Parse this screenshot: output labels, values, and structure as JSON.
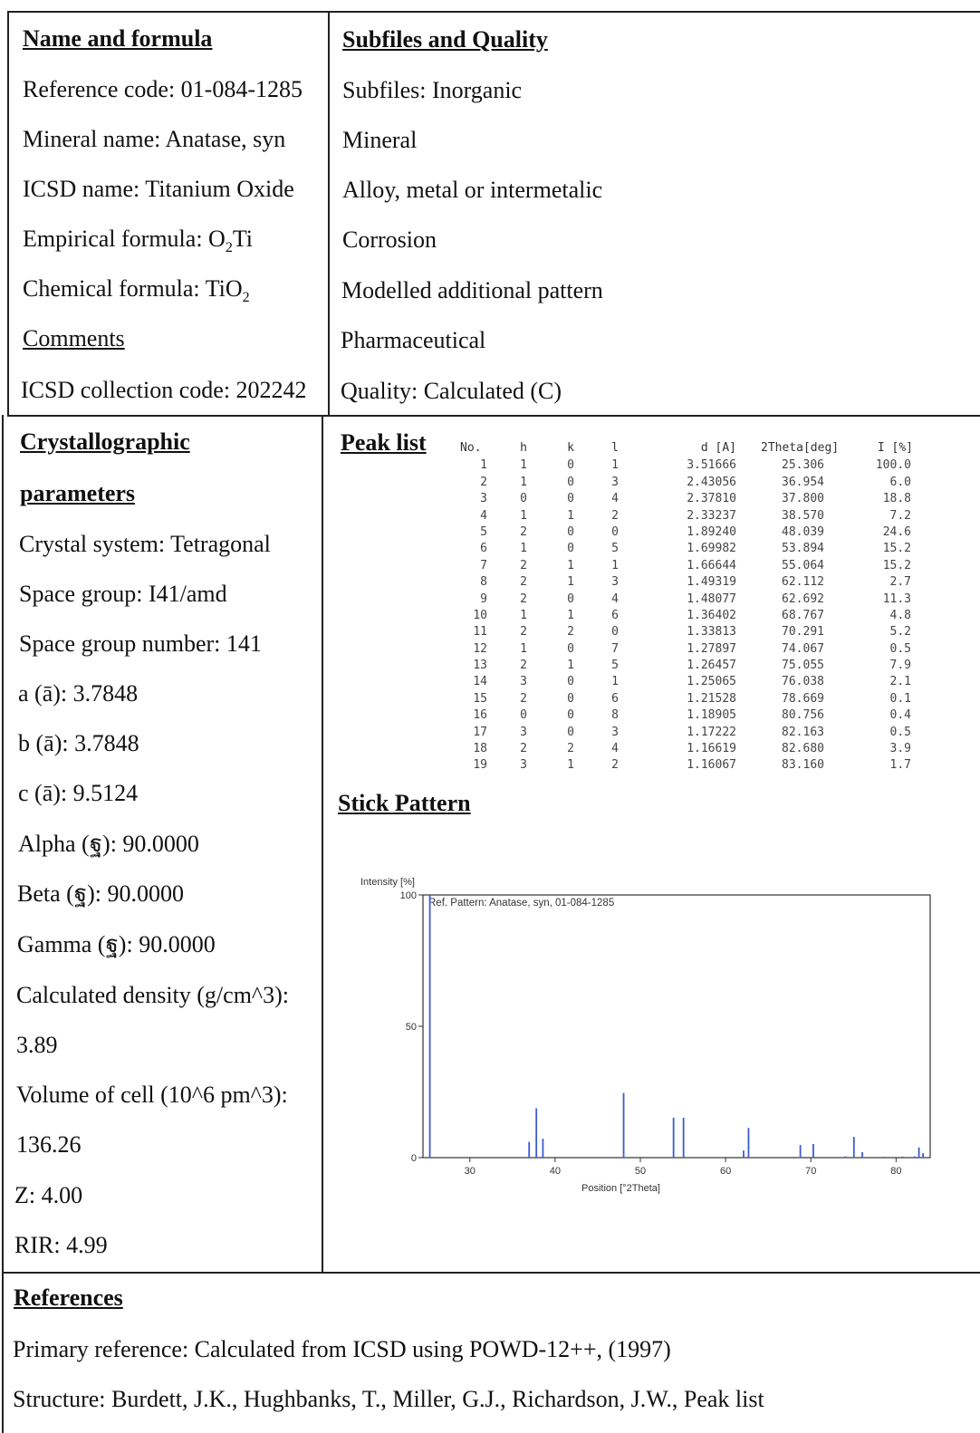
{
  "left_top": {
    "heading": "Name and formula",
    "reference_code": "Reference code: 01-084-1285",
    "mineral_name": "Mineral name: Anatase, syn",
    "icsd_name": "ICSD name: Titanium Oxide",
    "empirical_formula_prefix": "Empirical formula: O",
    "empirical_formula_sub": "2",
    "empirical_formula_suffix": "Ti",
    "chemical_formula_prefix": "Chemical formula: TiO",
    "chemical_formula_sub": "2",
    "comments": "Comments",
    "icsd_collection_code": "ICSD collection code: 202242"
  },
  "right_top": {
    "heading": "Subfiles and Quality",
    "subfiles": "Subfiles: Inorganic",
    "mineral": "Mineral",
    "alloy": "Alloy, metal or intermetalic",
    "corrosion": "Corrosion",
    "modelled": "Modelled additional pattern",
    "pharmaceutical": "Pharmaceutical",
    "quality": "Quality: Calculated (C)"
  },
  "crystal": {
    "heading_line1": "Crystallographic",
    "heading_line2": "parameters",
    "system": "Crystal system: Tetragonal",
    "space_group": "Space group: I41/amd",
    "space_group_number": "Space group number: 141",
    "a": "a (ā): 3.7848",
    "b": "b (ā): 3.7848",
    "c": "c (ā): 9.5124",
    "alpha": "Alpha (ฐ): 90.0000",
    "beta": "Beta (ฐ): 90.0000",
    "gamma": "Gamma (ฐ): 90.0000",
    "density_label": "Calculated density (g/cm^3):",
    "density_value": "3.89",
    "volume_label": "Volume of cell (10^6 pm^3):",
    "volume_value": "136.26",
    "z": "Z: 4.00",
    "rir": "RIR: 4.99"
  },
  "peak_list": {
    "heading": "Peak list",
    "columns": [
      "No.",
      "h",
      "k",
      "l",
      "d [A]",
      "2Theta[deg]",
      "I [%]"
    ],
    "rows": [
      [
        "1",
        "1",
        "0",
        "1",
        "3.51666",
        "25.306",
        "100.0"
      ],
      [
        "2",
        "1",
        "0",
        "3",
        "2.43056",
        "36.954",
        "6.0"
      ],
      [
        "3",
        "0",
        "0",
        "4",
        "2.37810",
        "37.800",
        "18.8"
      ],
      [
        "4",
        "1",
        "1",
        "2",
        "2.33237",
        "38.570",
        "7.2"
      ],
      [
        "5",
        "2",
        "0",
        "0",
        "1.89240",
        "48.039",
        "24.6"
      ],
      [
        "6",
        "1",
        "0",
        "5",
        "1.69982",
        "53.894",
        "15.2"
      ],
      [
        "7",
        "2",
        "1",
        "1",
        "1.66644",
        "55.064",
        "15.2"
      ],
      [
        "8",
        "2",
        "1",
        "3",
        "1.49319",
        "62.112",
        "2.7"
      ],
      [
        "9",
        "2",
        "0",
        "4",
        "1.48077",
        "62.692",
        "11.3"
      ],
      [
        "10",
        "1",
        "1",
        "6",
        "1.36402",
        "68.767",
        "4.8"
      ],
      [
        "11",
        "2",
        "2",
        "0",
        "1.33813",
        "70.291",
        "5.2"
      ],
      [
        "12",
        "1",
        "0",
        "7",
        "1.27897",
        "74.067",
        "0.5"
      ],
      [
        "13",
        "2",
        "1",
        "5",
        "1.26457",
        "75.055",
        "7.9"
      ],
      [
        "14",
        "3",
        "0",
        "1",
        "1.25065",
        "76.038",
        "2.1"
      ],
      [
        "15",
        "2",
        "0",
        "6",
        "1.21528",
        "78.669",
        "0.1"
      ],
      [
        "16",
        "0",
        "0",
        "8",
        "1.18905",
        "80.756",
        "0.4"
      ],
      [
        "17",
        "3",
        "0",
        "3",
        "1.17222",
        "82.163",
        "0.5"
      ],
      [
        "18",
        "2",
        "2",
        "4",
        "1.16619",
        "82.680",
        "3.9"
      ],
      [
        "19",
        "3",
        "1",
        "2",
        "1.16067",
        "83.160",
        "1.7"
      ]
    ]
  },
  "stick": {
    "heading": "Stick Pattern"
  },
  "chart_data": {
    "type": "bar",
    "title": "Ref. Pattern: Anatase, syn, 01-084-1285",
    "ylabel": "Intensity [%]",
    "xlabel": "Position [°2Theta]",
    "xlim": [
      24.5,
      84
    ],
    "ylim": [
      0,
      100
    ],
    "xticks": [
      30,
      40,
      50,
      60,
      70,
      80
    ],
    "yticks": [
      0,
      50,
      100
    ],
    "x": [
      25.306,
      36.954,
      37.8,
      38.57,
      48.039,
      53.894,
      55.064,
      62.112,
      62.692,
      68.767,
      70.291,
      74.067,
      75.055,
      76.038,
      78.669,
      80.756,
      82.163,
      82.68,
      83.16
    ],
    "values": [
      100.0,
      6.0,
      18.8,
      7.2,
      24.6,
      15.2,
      15.2,
      2.7,
      11.3,
      4.8,
      5.2,
      0.5,
      7.9,
      2.1,
      0.1,
      0.4,
      0.5,
      3.9,
      1.7
    ],
    "stick_color": "#3b5bd6"
  },
  "references": {
    "heading": "References",
    "primary": "Primary reference: Calculated from ICSD using POWD-12++, (1997)",
    "structure": "Structure: Burdett, J.K., Hughbanks, T., Miller, G.J., Richardson, J.W., Peak list"
  }
}
